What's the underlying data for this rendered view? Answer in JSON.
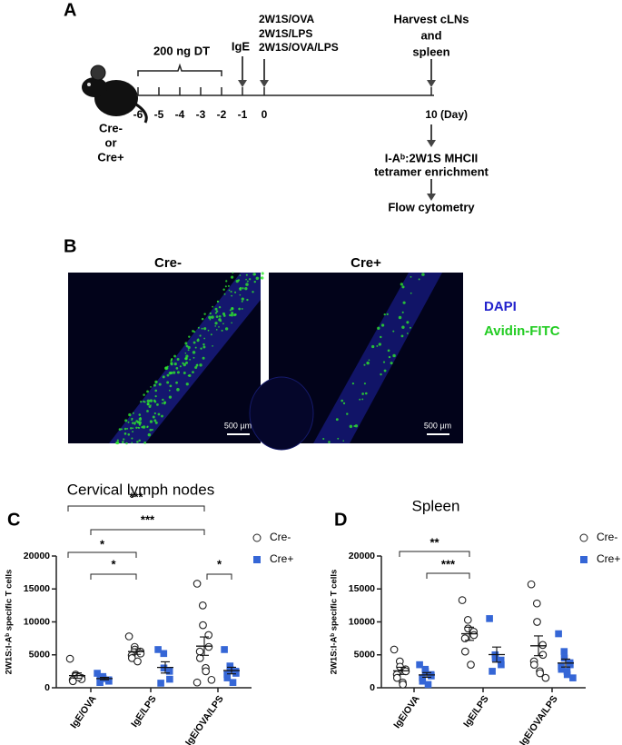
{
  "panel_a": {
    "letter": "A",
    "dose": "200 ng DT",
    "ige": "IgE",
    "treatments": [
      "2W1S/OVA",
      "2W1S/LPS",
      "2W1S/OVA/LPS"
    ],
    "harvest": [
      "Harvest cLNs",
      "and",
      "spleen"
    ],
    "days": [
      "-6",
      "-5",
      "-4",
      "-3",
      "-2",
      "-1",
      "0",
      "10"
    ],
    "day_unit": "(Day)",
    "mouse": [
      "Cre-",
      "or",
      "Cre+"
    ],
    "enrichment": [
      "I-Aᵇ:2W1S MHCII",
      "tetramer enrichment"
    ],
    "readout": "Flow cytometry"
  },
  "panel_b": {
    "letter": "B",
    "images": [
      "Cre-",
      "Cre+"
    ],
    "scale_bar": "500 µm",
    "stains": [
      "DAPI",
      "Avidin-FITC"
    ]
  },
  "chart_data": [
    {
      "type": "dot",
      "letter": "C",
      "title": "Cervical lymph nodes",
      "ylabel": "2W1S:I-Aᵇ specific T cells",
      "categories": [
        "IgE/OVA",
        "IgE/LPS",
        "IgE/OVA/LPS"
      ],
      "ylim": [
        0,
        20000
      ],
      "yticks": [
        0,
        5000,
        10000,
        15000,
        20000
      ],
      "legend": "right",
      "annotations": [
        "***",
        "***",
        "*",
        "*",
        "*"
      ],
      "series": [
        {
          "name": "Cre-",
          "color": "#222222",
          "marker": "open-circle",
          "values": [
            [
              4400,
              2000,
              1800,
              1500,
              1300,
              1200,
              1000,
              1600
            ],
            [
              7800,
              6200,
              5800,
              5500,
              5200,
              4900,
              4500,
              4000
            ],
            [
              15800,
              12500,
              9500,
              8000,
              6200,
              5500,
              4500,
              3000,
              2500,
              1200,
              800
            ]
          ],
          "mean": [
            1850,
            5488,
            6318
          ],
          "sem": [
            400,
            420,
            1400
          ]
        },
        {
          "name": "Cre+",
          "color": "#3566d6",
          "marker": "square",
          "values": [
            [
              2200,
              1700,
              1400,
              1200,
              1000,
              800,
              1500
            ],
            [
              5800,
              5200,
              3000,
              2500,
              1300,
              700
            ],
            [
              5800,
              3300,
              2800,
              2500,
              2200,
              2000,
              1500,
              800
            ]
          ],
          "mean": [
            1400,
            3083,
            2613
          ],
          "sem": [
            180,
            850,
            500
          ]
        }
      ]
    },
    {
      "type": "dot",
      "letter": "D",
      "title": "Spleen",
      "ylabel": "2W1S:I-Aᵇ specific T cells",
      "categories": [
        "IgE/OVA",
        "IgE/LPS",
        "IgE/OVA/LPS"
      ],
      "ylim": [
        0,
        20000
      ],
      "yticks": [
        0,
        5000,
        10000,
        15000,
        20000
      ],
      "legend": "right",
      "annotations": [
        "**",
        "***"
      ],
      "series": [
        {
          "name": "Cre-",
          "color": "#222222",
          "marker": "open-circle",
          "values": [
            [
              5800,
              4000,
              3200,
              2800,
              2500,
              2000,
              1500,
              800,
              500
            ],
            [
              13300,
              10300,
              9000,
              8500,
              8000,
              7500,
              5500,
              3500
            ],
            [
              15700,
              12800,
              10000,
              6500,
              5000,
              4000,
              3500,
              2500,
              2200,
              1500
            ]
          ],
          "mean": [
            2567,
            8200,
            6370
          ],
          "sem": [
            550,
            1000,
            1500
          ]
        },
        {
          "name": "Cre+",
          "color": "#3566d6",
          "marker": "square",
          "values": [
            [
              3500,
              2800,
              2500,
              2000,
              1800,
              1500,
              1000,
              500
            ],
            [
              10500,
              5000,
              4500,
              4200,
              3500,
              2500
            ],
            [
              8200,
              5500,
              4500,
              3800,
              3500,
              3200,
              2800,
              2500,
              2000,
              1500
            ]
          ],
          "mean": [
            1950,
            5033,
            3750
          ],
          "sem": [
            350,
            1150,
            600
          ]
        }
      ]
    }
  ]
}
